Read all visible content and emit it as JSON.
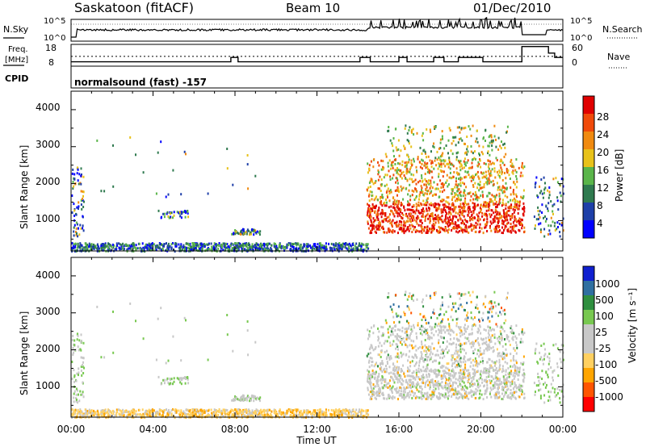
{
  "header": {
    "station": "Saskatoon (fitACF)",
    "beam": "Beam 10",
    "date": "01/Dec/2010"
  },
  "strip_labels": {
    "nsky": "N.Sky",
    "nsearch": "N.Search",
    "freq_line1": "Freq.",
    "freq_line2": "[MHz]",
    "nave": "Nave",
    "cpid": "CPID",
    "cpid_value": "normalsound (fast) -157"
  },
  "colors": {
    "power_scale": [
      "#0000ff",
      "#1e3fa8",
      "#2f7a4f",
      "#5ab54a",
      "#e8c21a",
      "#f08a10",
      "#f04a0a",
      "#e00000"
    ],
    "velocity_scale": [
      "#ff0000",
      "#ff5500",
      "#ffa500",
      "#ffd060",
      "#c8c8c8",
      "#c8c8c8",
      "#78c850",
      "#2f8f3f",
      "#2f6fa0",
      "#1020d0"
    ],
    "velocity_ground": "#c8c8c8"
  },
  "chart_data": [
    {
      "type": "line",
      "name": "n-sky-n-search",
      "left_ticks": [
        "10^5",
        "10^0"
      ],
      "right_ticks": [
        "10^5",
        "10^0"
      ]
    },
    {
      "type": "line",
      "name": "frequency-nave",
      "left_ticks": [
        "18",
        "8"
      ],
      "right_ticks": [
        "60",
        "0"
      ],
      "freq_steps": [
        {
          "t0": 0,
          "t1": 7.8,
          "v": 10
        },
        {
          "t0": 7.8,
          "t1": 8.15,
          "v": 12
        },
        {
          "t0": 8.15,
          "t1": 14.1,
          "v": 10
        },
        {
          "t0": 14.1,
          "t1": 14.6,
          "v": 12
        },
        {
          "t0": 14.6,
          "t1": 16.0,
          "v": 10
        },
        {
          "t0": 16.0,
          "t1": 16.4,
          "v": 12
        },
        {
          "t0": 16.4,
          "t1": 17.7,
          "v": 10
        },
        {
          "t0": 17.7,
          "t1": 18.2,
          "v": 12
        },
        {
          "t0": 18.2,
          "t1": 18.9,
          "v": 10
        },
        {
          "t0": 18.9,
          "t1": 20.1,
          "v": 12
        },
        {
          "t0": 20.1,
          "t1": 22.0,
          "v": 10
        },
        {
          "t0": 22.0,
          "t1": 23.3,
          "v": 17
        },
        {
          "t0": 23.3,
          "t1": 23.6,
          "v": 14
        },
        {
          "t0": 23.6,
          "t1": 24,
          "v": 12
        }
      ],
      "nave_level": 12.5
    },
    {
      "type": "heatmap",
      "name": "power",
      "ylabel": "Slant Range [km]",
      "yticks": [
        "4000",
        "3000",
        "2000",
        "1000"
      ],
      "ylim": [
        180,
        4500
      ],
      "colorbar_label": "Power [dB]",
      "colorbar_ticks": [
        "28",
        "24",
        "20",
        "16",
        "12",
        "8",
        "4"
      ]
    },
    {
      "type": "heatmap",
      "name": "velocity",
      "ylabel": "Slant Range [km]",
      "yticks": [
        "4000",
        "3000",
        "2000",
        "1000"
      ],
      "ylim": [
        180,
        4500
      ],
      "colorbar_label": "Velocity [m s⁻¹]",
      "colorbar_ticks": [
        "1000",
        "500",
        "100",
        "25",
        "-25",
        "-100",
        "-500",
        "-1000"
      ]
    }
  ],
  "x_axis": {
    "tick_labels": [
      "00:00",
      "04:00",
      "08:00",
      "12:00",
      "16:00",
      "20:00",
      "00:00"
    ],
    "label": "Time UT",
    "range_hours": [
      0,
      24
    ]
  }
}
